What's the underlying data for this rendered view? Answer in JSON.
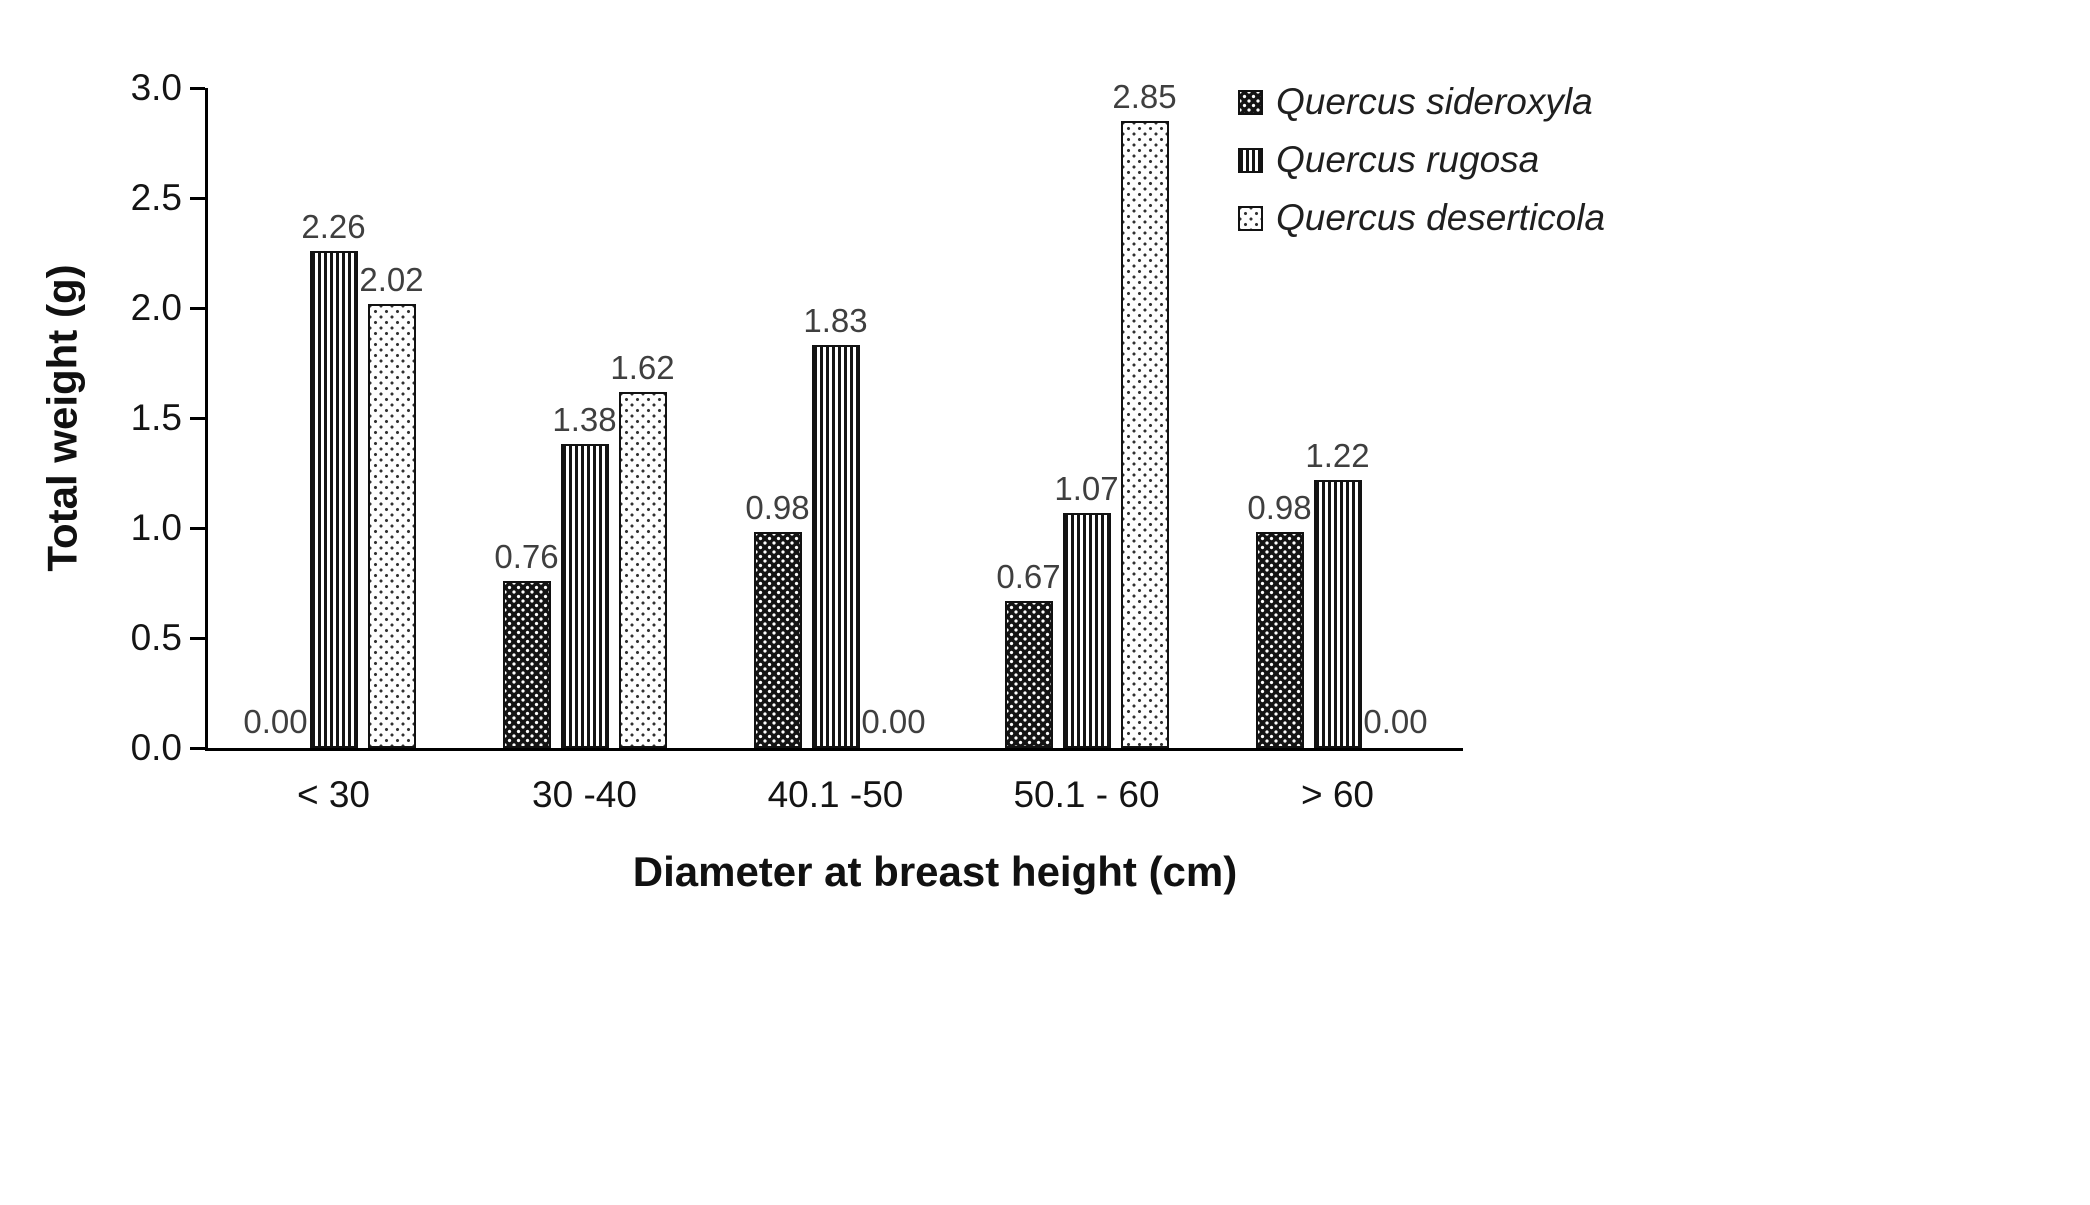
{
  "chart_data": {
    "type": "bar",
    "title": "",
    "xlabel": "Diameter at breast height (cm)",
    "ylabel": "Total weight (g)",
    "categories": [
      "<  30",
      "30 -40",
      "40.1 -50",
      "50.1 - 60",
      "> 60"
    ],
    "series": [
      {
        "name": "Quercus sideroxyla",
        "pattern": "dark-dots",
        "values": [
          0.0,
          0.76,
          0.98,
          0.67,
          0.98
        ]
      },
      {
        "name": "Quercus rugosa",
        "pattern": "vertical-stripes",
        "values": [
          2.26,
          1.38,
          1.83,
          1.07,
          1.22
        ]
      },
      {
        "name": "Quercus deserticola",
        "pattern": "light-dots",
        "values": [
          2.02,
          1.62,
          0.0,
          2.85,
          0.0
        ]
      }
    ],
    "ylim": [
      0.0,
      3.0
    ],
    "yticks": [
      0.0,
      0.5,
      1.0,
      1.5,
      2.0,
      2.5,
      3.0
    ],
    "value_label_decimals": 2,
    "grid": false,
    "legend_position": "top-right"
  }
}
